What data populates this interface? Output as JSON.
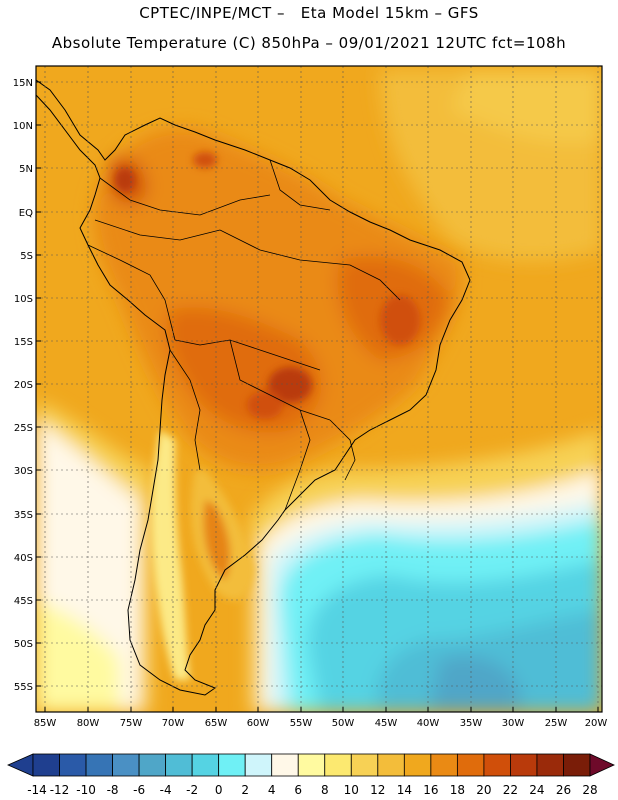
{
  "header": {
    "title_line1": "CPTEC/INPE/MCT –   Eta Model 15km – GFS",
    "title_line2": "Absolute Temperature (C) 850hPa – 09/01/2021 12UTC fct=108h"
  },
  "map": {
    "lat_labels": [
      "15N",
      "10N",
      "5N",
      "EQ",
      "5S",
      "10S",
      "15S",
      "20S",
      "25S",
      "30S",
      "35S",
      "40S",
      "45S",
      "50S",
      "55S"
    ],
    "lon_labels": [
      "85W",
      "80W",
      "75W",
      "70W",
      "65W",
      "60W",
      "55W",
      "50W",
      "45W",
      "40W",
      "35W",
      "30W",
      "25W",
      "20W"
    ],
    "lat_values": [
      15,
      10,
      5,
      0,
      -5,
      -10,
      -15,
      -20,
      -25,
      -30,
      -35,
      -40,
      -45,
      -50,
      -55
    ],
    "lon_values": [
      -85,
      -80,
      -75,
      -70,
      -65,
      -60,
      -55,
      -50,
      -45,
      -40,
      -35,
      -30,
      -25,
      -20
    ]
  },
  "colorbar": {
    "labels": [
      "-14",
      "-12",
      "-10",
      "-8",
      "-6",
      "-4",
      "-2",
      "0",
      "2",
      "4",
      "6",
      "8",
      "10",
      "12",
      "14",
      "16",
      "18",
      "20",
      "22",
      "24",
      "26",
      "28"
    ],
    "colors": [
      "#1f3f8f",
      "#2a5aa8",
      "#3674b5",
      "#4a90c4",
      "#4fa6c8",
      "#50bdd6",
      "#55d3e3",
      "#6ff0f5",
      "#cff5fb",
      "#fff8e8",
      "#fffaa0",
      "#fce970",
      "#f7d155",
      "#f3bd3a",
      "#f0a81e",
      "#ea8a14",
      "#e06c0c",
      "#d04f0a",
      "#b93a0b",
      "#9a2a0a",
      "#7a1d08",
      "#6e0a2a"
    ]
  }
}
